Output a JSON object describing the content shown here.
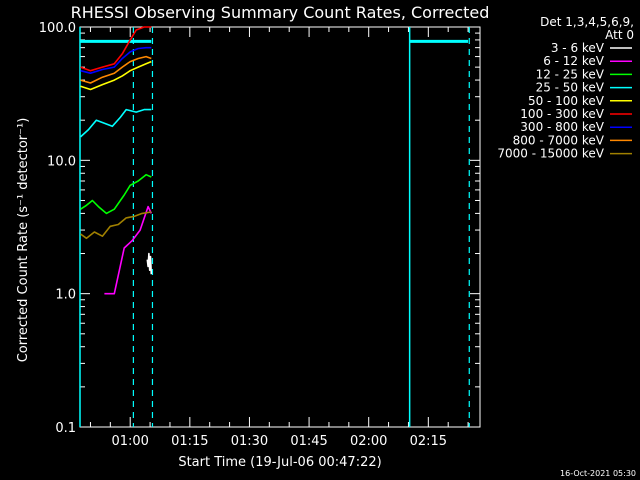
{
  "chart_data": {
    "type": "line",
    "title": "RHESSI Observing Summary Count Rates, Corrected",
    "xlabel": "Start Time (19-Jul-06 00:47:22)",
    "ylabel": "Corrected Count Rate (s⁻¹ detector⁻¹)",
    "ylog": true,
    "ylim": [
      0.1,
      100
    ],
    "xlim_minutes": [
      47.37,
      148.0
    ],
    "x_unit": "minutes after 00:00 UT",
    "xticks": [
      {
        "label": "01:00",
        "value": 60
      },
      {
        "label": "01:15",
        "value": 75
      },
      {
        "label": "01:30",
        "value": 90
      },
      {
        "label": "01:45",
        "value": 105
      },
      {
        "label": "02:00",
        "value": 120
      },
      {
        "label": "02:15",
        "value": 135
      }
    ],
    "yticks": [
      {
        "label": "0.1",
        "value": 0.1
      },
      {
        "label": "1.0",
        "value": 1
      },
      {
        "label": "10.0",
        "value": 10
      },
      {
        "label": "100.0",
        "value": 100
      }
    ],
    "legend_header": [
      "Det 1,3,4,5,6,9,",
      "Att 0"
    ],
    "legend_position": "right",
    "series": [
      {
        "name": "3 - 6 keV",
        "color": "#ffffff",
        "points": [
          [
            64.3,
            1.8
          ],
          [
            64.5,
            1.6
          ],
          [
            64.7,
            2.0
          ],
          [
            64.9,
            1.5
          ],
          [
            65.1,
            1.9
          ],
          [
            65.3,
            1.4
          ]
        ]
      },
      {
        "name": "6 - 12 keV",
        "color": "#ff00ff",
        "points": [
          [
            53.5,
            1.0
          ],
          [
            56.0,
            1.0
          ],
          [
            58.5,
            2.2
          ],
          [
            60.5,
            2.5
          ],
          [
            62.5,
            3.0
          ],
          [
            64.5,
            4.5
          ],
          [
            65.3,
            4.0
          ]
        ]
      },
      {
        "name": "12 - 25 keV",
        "color": "#00ff00",
        "points": [
          [
            47.5,
            4.3
          ],
          [
            49.0,
            4.6
          ],
          [
            50.5,
            5.0
          ],
          [
            52.0,
            4.5
          ],
          [
            54.0,
            4.0
          ],
          [
            56.0,
            4.3
          ],
          [
            58.5,
            5.5
          ],
          [
            60.0,
            6.5
          ],
          [
            62.0,
            7.0
          ],
          [
            64.0,
            7.8
          ],
          [
            65.3,
            7.5
          ]
        ]
      },
      {
        "name": "25 - 50 keV",
        "color": "#00ffff",
        "points": [
          [
            47.5,
            15
          ],
          [
            49.5,
            17
          ],
          [
            51.5,
            20
          ],
          [
            53.5,
            19
          ],
          [
            55.5,
            18
          ],
          [
            57.5,
            21
          ],
          [
            59.0,
            24
          ],
          [
            61.5,
            23
          ],
          [
            63.5,
            24
          ],
          [
            65.3,
            24
          ]
        ]
      },
      {
        "name": "50 - 100 keV",
        "color": "#ffff00",
        "points": [
          [
            47.5,
            36
          ],
          [
            50.0,
            34
          ],
          [
            53.0,
            37
          ],
          [
            56.0,
            40
          ],
          [
            58.0,
            43
          ],
          [
            60.0,
            47
          ],
          [
            62.0,
            50
          ],
          [
            64.0,
            53
          ],
          [
            65.3,
            55
          ]
        ]
      },
      {
        "name": "100 - 300 keV",
        "color": "#ff0000",
        "points": [
          [
            47.5,
            50
          ],
          [
            50.0,
            47
          ],
          [
            53.0,
            50
          ],
          [
            56.0,
            53
          ],
          [
            58.0,
            63
          ],
          [
            60.0,
            80
          ],
          [
            61.5,
            95
          ],
          [
            63.5,
            100
          ],
          [
            65.3,
            100
          ]
        ]
      },
      {
        "name": "300 - 800 keV",
        "color": "#0000ff",
        "points": [
          [
            47.5,
            47
          ],
          [
            50.0,
            45
          ],
          [
            53.0,
            48
          ],
          [
            56.0,
            50
          ],
          [
            58.0,
            58
          ],
          [
            60.0,
            65
          ],
          [
            62.0,
            69
          ],
          [
            64.0,
            70
          ],
          [
            65.3,
            70
          ]
        ]
      },
      {
        "name": "800 - 7000 keV",
        "color": "#ff8800",
        "points": [
          [
            47.5,
            40
          ],
          [
            50.0,
            38
          ],
          [
            53.0,
            42
          ],
          [
            56.0,
            45
          ],
          [
            58.0,
            50
          ],
          [
            60.0,
            55
          ],
          [
            62.0,
            58
          ],
          [
            64.0,
            60
          ],
          [
            65.3,
            58
          ]
        ]
      },
      {
        "name": "7000 - 15000 keV",
        "color": "#a08000",
        "points": [
          [
            47.5,
            2.8
          ],
          [
            49.0,
            2.6
          ],
          [
            51.0,
            2.9
          ],
          [
            53.0,
            2.7
          ],
          [
            55.0,
            3.2
          ],
          [
            57.0,
            3.3
          ],
          [
            59.0,
            3.7
          ],
          [
            61.0,
            3.8
          ],
          [
            63.0,
            4.0
          ],
          [
            65.3,
            4.1
          ]
        ]
      }
    ],
    "attenuator_segments": [
      {
        "color": "#00ffff",
        "points": [
          [
            47.4,
            78
          ],
          [
            65.3,
            78
          ]
        ]
      },
      {
        "color": "#00ffff",
        "points": [
          [
            130.3,
            78
          ],
          [
            145.0,
            78
          ]
        ]
      }
    ],
    "solid_markers": [
      47.37,
      130.3
    ],
    "dashed_markers": [
      60.8,
      65.6,
      145.3
    ]
  },
  "footer_date": "16-Oct-2021 05:30"
}
